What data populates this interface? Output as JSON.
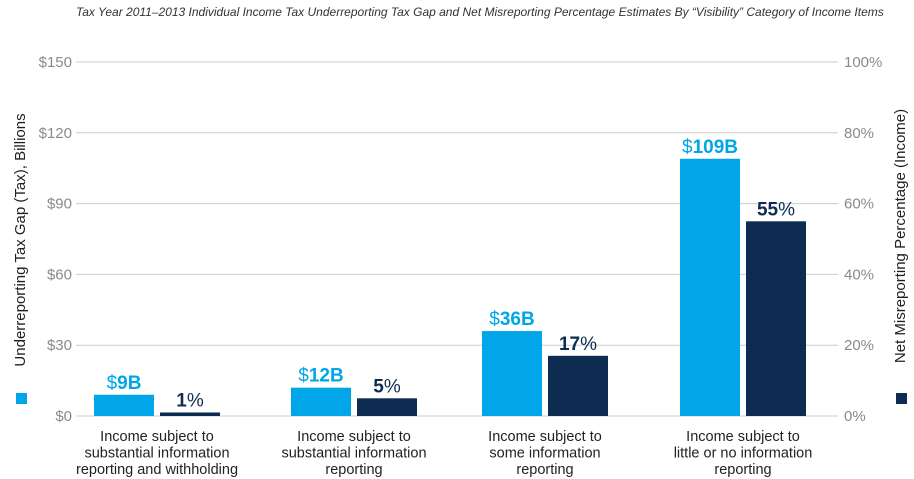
{
  "title": "Tax Year 2011–2013 Individual Income Tax Underreporting Tax Gap and Net Misreporting Percentage Estimates By “Visibility” Category of Income Items",
  "colors": {
    "tax_gap": "#00a6e8",
    "misreporting": "#0e2c52",
    "grid": "#cccccc",
    "tick": "#8a8a8a"
  },
  "chart_data": {
    "type": "bar",
    "title": "Tax Year 2011–2013 Individual Income Tax Underreporting Tax Gap and Net Misreporting Percentage Estimates By “Visibility” Category of Income Items",
    "categories": [
      [
        "Income subject to",
        "substantial information",
        "reporting and withholding"
      ],
      [
        "Income subject to",
        "substantial information",
        "reporting"
      ],
      [
        "Income subject to",
        "some information",
        "reporting"
      ],
      [
        "Income subject to",
        "little or no information",
        "reporting"
      ]
    ],
    "ylabel_left": "Underreporting Tax Gap (Tax), Billions",
    "ylabel_right": "Net Misreporting Percentage (Income)",
    "ylim_left": [
      0,
      150
    ],
    "ylim_right": [
      0,
      100
    ],
    "left_ticks": [
      "$0",
      "$30",
      "$60",
      "$90",
      "$120",
      "$150"
    ],
    "right_ticks": [
      "0%",
      "20%",
      "40%",
      "60%",
      "80%",
      "100%"
    ],
    "grid": true,
    "series": [
      {
        "axis": "left",
        "values": [
          9,
          12,
          36,
          109
        ],
        "labels": [
          [
            "$",
            "9B"
          ],
          [
            "$",
            "12B"
          ],
          [
            "$",
            "36B"
          ],
          [
            "$",
            "109B"
          ]
        ]
      },
      {
        "axis": "right",
        "values": [
          1,
          5,
          17,
          55
        ],
        "labels": [
          [
            "1",
            "%"
          ],
          [
            "5",
            "%"
          ],
          [
            "17",
            "%"
          ],
          [
            "55",
            "%"
          ]
        ]
      }
    ]
  }
}
